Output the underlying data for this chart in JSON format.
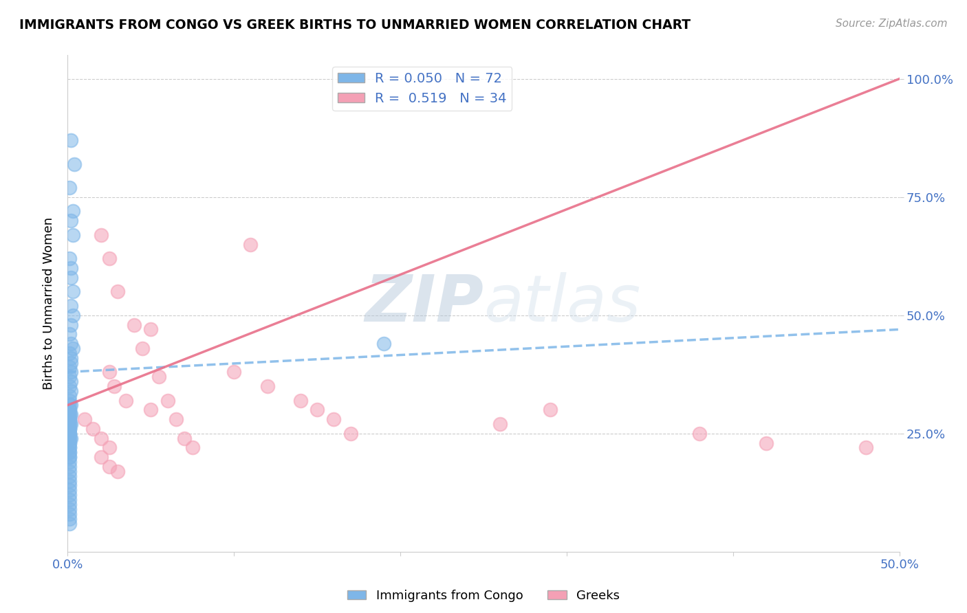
{
  "title": "IMMIGRANTS FROM CONGO VS GREEK BIRTHS TO UNMARRIED WOMEN CORRELATION CHART",
  "source": "Source: ZipAtlas.com",
  "ylabel_label": "Births to Unmarried Women",
  "xlim": [
    0.0,
    0.5
  ],
  "ylim": [
    0.0,
    1.05
  ],
  "blue_R": 0.05,
  "blue_N": 72,
  "pink_R": 0.519,
  "pink_N": 34,
  "blue_color": "#7EB6E8",
  "pink_color": "#F4A0B5",
  "blue_line_color": "#7EB6E8",
  "pink_line_color": "#E8708A",
  "watermark_zip": "ZIP",
  "watermark_atlas": "atlas",
  "legend_label_blue": "Immigrants from Congo",
  "legend_label_pink": "Greeks",
  "blue_scatter_x": [
    0.002,
    0.004,
    0.001,
    0.003,
    0.002,
    0.003,
    0.001,
    0.002,
    0.002,
    0.003,
    0.002,
    0.003,
    0.002,
    0.001,
    0.002,
    0.003,
    0.001,
    0.002,
    0.002,
    0.001,
    0.002,
    0.001,
    0.002,
    0.001,
    0.002,
    0.001,
    0.001,
    0.002,
    0.001,
    0.002,
    0.001,
    0.002,
    0.001,
    0.001,
    0.002,
    0.001,
    0.001,
    0.001,
    0.001,
    0.001,
    0.001,
    0.001,
    0.001,
    0.001,
    0.001,
    0.001,
    0.001,
    0.001,
    0.001,
    0.001,
    0.001,
    0.001,
    0.001,
    0.001,
    0.001,
    0.001,
    0.001,
    0.001,
    0.001,
    0.001,
    0.001,
    0.001,
    0.001,
    0.001,
    0.001,
    0.001,
    0.19,
    0.001,
    0.001,
    0.001,
    0.001,
    0.001
  ],
  "blue_scatter_y": [
    0.87,
    0.82,
    0.77,
    0.72,
    0.7,
    0.67,
    0.62,
    0.6,
    0.58,
    0.55,
    0.52,
    0.5,
    0.48,
    0.46,
    0.44,
    0.43,
    0.42,
    0.41,
    0.4,
    0.39,
    0.38,
    0.37,
    0.36,
    0.35,
    0.34,
    0.33,
    0.32,
    0.31,
    0.3,
    0.29,
    0.28,
    0.27,
    0.26,
    0.25,
    0.24,
    0.23,
    0.22,
    0.21,
    0.2,
    0.19,
    0.18,
    0.17,
    0.16,
    0.15,
    0.14,
    0.13,
    0.12,
    0.11,
    0.1,
    0.09,
    0.29,
    0.28,
    0.27,
    0.26,
    0.25,
    0.24,
    0.23,
    0.22,
    0.21,
    0.2,
    0.31,
    0.3,
    0.29,
    0.28,
    0.27,
    0.26,
    0.44,
    0.25,
    0.24,
    0.08,
    0.07,
    0.06
  ],
  "pink_scatter_x": [
    0.025,
    0.028,
    0.035,
    0.05,
    0.02,
    0.025,
    0.03,
    0.04,
    0.045,
    0.055,
    0.06,
    0.065,
    0.07,
    0.075,
    0.01,
    0.015,
    0.02,
    0.025,
    0.05,
    0.1,
    0.12,
    0.14,
    0.15,
    0.02,
    0.025,
    0.03,
    0.11,
    0.16,
    0.17,
    0.26,
    0.38,
    0.42,
    0.48,
    0.29
  ],
  "pink_scatter_y": [
    0.38,
    0.35,
    0.32,
    0.3,
    0.67,
    0.62,
    0.55,
    0.48,
    0.43,
    0.37,
    0.32,
    0.28,
    0.24,
    0.22,
    0.28,
    0.26,
    0.24,
    0.22,
    0.47,
    0.38,
    0.35,
    0.32,
    0.3,
    0.2,
    0.18,
    0.17,
    0.65,
    0.28,
    0.25,
    0.27,
    0.25,
    0.23,
    0.22,
    0.3
  ],
  "blue_trend": [
    0.0,
    0.5,
    0.38,
    0.47
  ],
  "pink_trend": [
    0.0,
    0.5,
    0.31,
    1.0
  ]
}
